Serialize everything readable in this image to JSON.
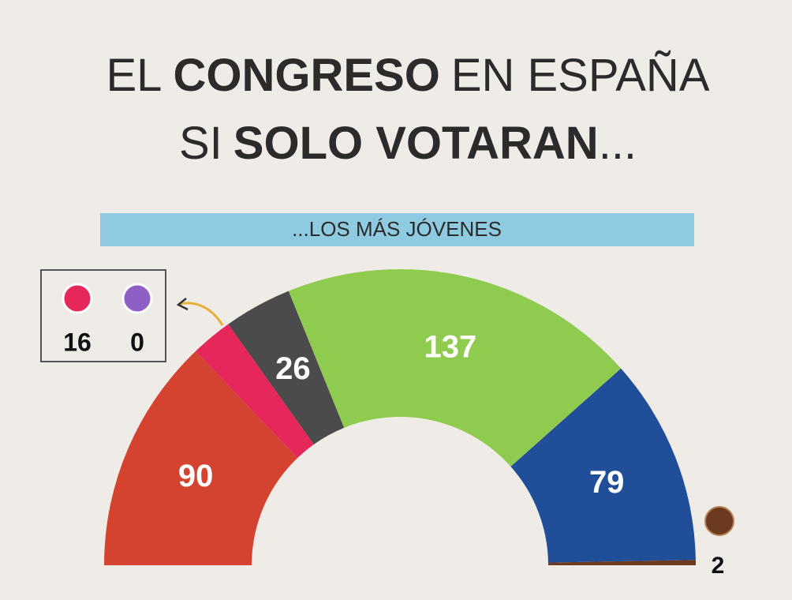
{
  "chart_data": {
    "type": "parliament",
    "title": [
      [
        {
          "text": "EL"
        },
        {
          "text": "CONGRESO",
          "bold": true
        },
        {
          "text": "EN ESPAÑA"
        }
      ],
      [
        {
          "text": "SI"
        },
        {
          "text": "SOLO VOTARAN",
          "bold": true
        },
        {
          "text": "..."
        }
      ]
    ],
    "subtitle": "...LOS MÁS JÓVENES",
    "values": [
      90,
      16,
      0,
      26,
      137,
      79,
      2
    ],
    "colors": [
      "#d4432f",
      "#e5275b",
      "#8e5fc4",
      "#4b4b4b",
      "#8fcb4e",
      "#214e99",
      "#6b3a1f"
    ],
    "label_position": [
      "inside",
      "box",
      "box",
      "inside",
      "inside",
      "inside",
      "outside"
    ]
  }
}
